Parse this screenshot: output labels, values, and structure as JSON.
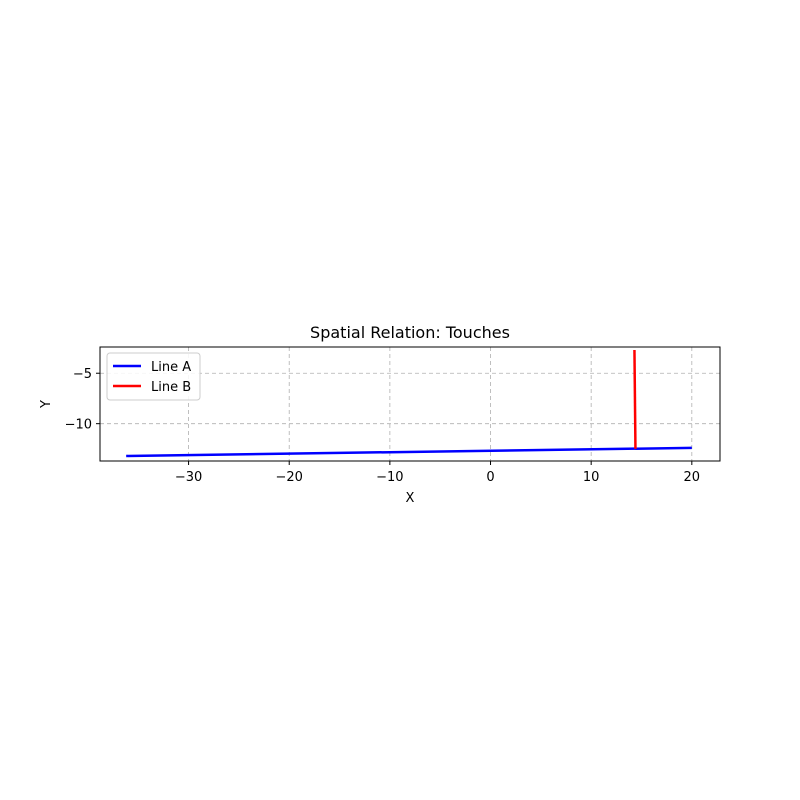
{
  "chart_data": {
    "type": "line",
    "title": "Spatial Relation: Touches",
    "xlabel": "X",
    "ylabel": "Y",
    "xlim": [
      -38.8,
      22.8
    ],
    "ylim": [
      -13.7,
      -2.4
    ],
    "xticks": [
      -30,
      -20,
      -10,
      0,
      10,
      20
    ],
    "yticks": [
      -5,
      -10
    ],
    "xtick_labels": [
      "−30",
      "−20",
      "−10",
      "0",
      "10",
      "20"
    ],
    "ytick_labels": [
      "−5",
      "−10"
    ],
    "grid": true,
    "legend_position": "upper-left",
    "series": [
      {
        "name": "Line A",
        "color": "#0000ff",
        "x": [
          -36.2,
          20.0
        ],
        "y": [
          -13.2,
          -12.4
        ]
      },
      {
        "name": "Line B",
        "color": "#ff0000",
        "x": [
          14.3,
          14.4
        ],
        "y": [
          -2.7,
          -12.5
        ]
      }
    ]
  }
}
